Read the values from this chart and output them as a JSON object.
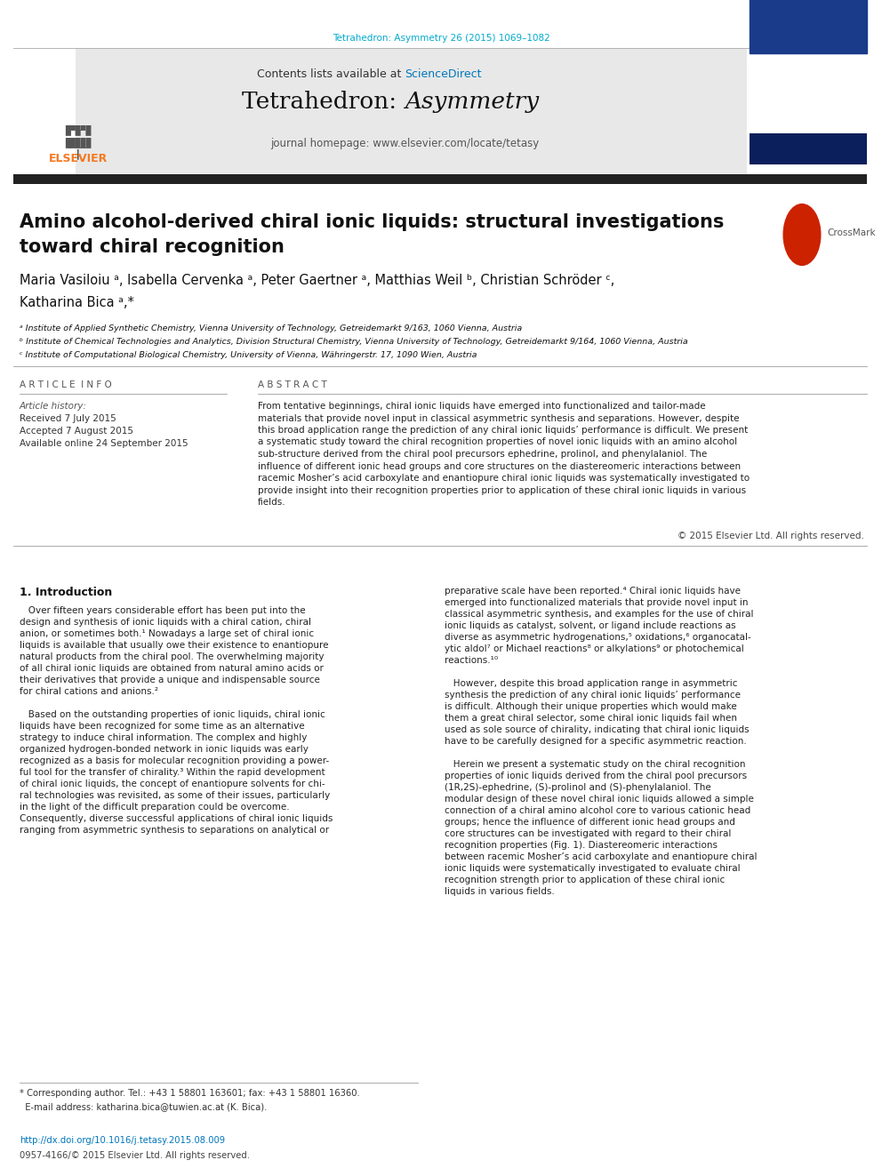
{
  "background_color": "#ffffff",
  "page_width": 9.92,
  "page_height": 13.23,
  "dpi": 100,
  "journal_url_text": "Tetrahedron: Asymmetry 26 (2015) 1069–1082",
  "journal_url_color": "#00aacc",
  "header_bg_color": "#e8e8e8",
  "header_contents_text": "Contents lists available at ",
  "header_sciencedirect_text": "ScienceDirect",
  "header_sciencedirect_color": "#0077bb",
  "journal_title_regular": "Tetrahedron: ",
  "journal_title_italic": "Asymmetry",
  "journal_homepage_text": "journal homepage: www.elsevier.com/locate/tetasy",
  "thick_bar_color": "#222222",
  "article_title_line1": "Amino alcohol-derived chiral ionic liquids: structural investigations",
  "article_title_line2": "toward chiral recognition",
  "authors_line1": "Maria Vasiloiu ᵃ, Isabella Cervenka ᵃ, Peter Gaertner ᵃ, Matthias Weil ᵇ, Christian Schröder ᶜ,",
  "authors_line2": "Katharina Bica ᵃ,*",
  "affil_a": "ᵃ Institute of Applied Synthetic Chemistry, Vienna University of Technology, Getreidemarkt 9/163, 1060 Vienna, Austria",
  "affil_b": "ᵇ Institute of Chemical Technologies and Analytics, Division Structural Chemistry, Vienna University of Technology, Getreidemarkt 9/164, 1060 Vienna, Austria",
  "affil_c": "ᶜ Institute of Computational Biological Chemistry, University of Vienna, Währingerstr. 17, 1090 Wien, Austria",
  "article_info_header": "A R T I C L E  I N F O",
  "abstract_header": "A B S T R A C T",
  "article_history_label": "Article history:",
  "received": "Received 7 July 2015",
  "accepted": "Accepted 7 August 2015",
  "available": "Available online 24 September 2015",
  "abstract_lines": [
    "From tentative beginnings, chiral ionic liquids have emerged into functionalized and tailor-made",
    "materials that provide novel input in classical asymmetric synthesis and separations. However, despite",
    "this broad application range the prediction of any chiral ionic liquids’ performance is difficult. We present",
    "a systematic study toward the chiral recognition properties of novel ionic liquids with an amino alcohol",
    "sub-structure derived from the chiral pool precursors ephedrine, prolinol, and phenylalaniol. The",
    "influence of different ionic head groups and core structures on the diastereomeric interactions between",
    "racemic Mosher’s acid carboxylate and enantiopure chiral ionic liquids was systematically investigated to",
    "provide insight into their recognition properties prior to application of these chiral ionic liquids in various",
    "fields."
  ],
  "copyright_text": "© 2015 Elsevier Ltd. All rights reserved.",
  "section1_header": "1. Introduction",
  "intro_col1_lines": [
    "   Over fifteen years considerable effort has been put into the",
    "design and synthesis of ionic liquids with a chiral cation, chiral",
    "anion, or sometimes both.¹ Nowadays a large set of chiral ionic",
    "liquids is available that usually owe their existence to enantiopure",
    "natural products from the chiral pool. The overwhelming majority",
    "of all chiral ionic liquids are obtained from natural amino acids or",
    "their derivatives that provide a unique and indispensable source",
    "for chiral cations and anions.²",
    "",
    "   Based on the outstanding properties of ionic liquids, chiral ionic",
    "liquids have been recognized for some time as an alternative",
    "strategy to induce chiral information. The complex and highly",
    "organized hydrogen-bonded network in ionic liquids was early",
    "recognized as a basis for molecular recognition providing a power-",
    "ful tool for the transfer of chirality.³ Within the rapid development",
    "of chiral ionic liquids, the concept of enantiopure solvents for chi-",
    "ral technologies was revisited, as some of their issues, particularly",
    "in the light of the difficult preparation could be overcome.",
    "Consequently, diverse successful applications of chiral ionic liquids",
    "ranging from asymmetric synthesis to separations on analytical or"
  ],
  "intro_col2_lines": [
    "preparative scale have been reported.⁴ Chiral ionic liquids have",
    "emerged into functionalized materials that provide novel input in",
    "classical asymmetric synthesis, and examples for the use of chiral",
    "ionic liquids as catalyst, solvent, or ligand include reactions as",
    "diverse as asymmetric hydrogenations,⁵ oxidations,⁶ organocatal-",
    "ytic aldol⁷ or Michael reactions⁸ or alkylations⁹ or photochemical",
    "reactions.¹⁰",
    "",
    "   However, despite this broad application range in asymmetric",
    "synthesis the prediction of any chiral ionic liquids’ performance",
    "is difficult. Although their unique properties which would make",
    "them a great chiral selector, some chiral ionic liquids fail when",
    "used as sole source of chirality, indicating that chiral ionic liquids",
    "have to be carefully designed for a specific asymmetric reaction.",
    "",
    "   Herein we present a systematic study on the chiral recognition",
    "properties of ionic liquids derived from the chiral pool precursors",
    "(1R,2S)-ephedrine, (S)-prolinol and (S)-phenylalaniol. The",
    "modular design of these novel chiral ionic liquids allowed a simple",
    "connection of a chiral amino alcohol core to various cationic head",
    "groups; hence the influence of different ionic head groups and",
    "core structures can be investigated with regard to their chiral",
    "recognition properties (Fig. 1). Diastereomeric interactions",
    "between racemic Mosher’s acid carboxylate and enantiopure chiral",
    "ionic liquids were systematically investigated to evaluate chiral",
    "recognition strength prior to application of these chiral ionic",
    "liquids in various fields."
  ],
  "footnote_line1": "* Corresponding author. Tel.: +43 1 58801 163601; fax: +43 1 58801 16360.",
  "footnote_line2": "  E-mail address: katharina.bica@tuwien.ac.at (K. Bica).",
  "doi_text": "http://dx.doi.org/10.1016/j.tetasy.2015.08.009",
  "doi_color": "#0077bb",
  "issn_text": "0957-4166/© 2015 Elsevier Ltd. All rights reserved.",
  "elsevier_orange": "#f47920",
  "elsevier_text": "ELSEVIER"
}
